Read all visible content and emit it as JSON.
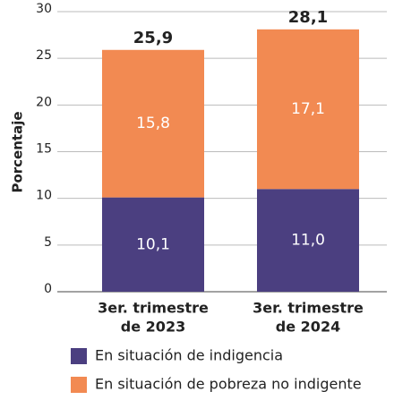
{
  "chart_data": {
    "type": "stacked_bar",
    "categories": [
      [
        "3er. trimestre",
        "de 2023"
      ],
      [
        "3er. trimestre",
        "de 2024"
      ]
    ],
    "y_label": "Porcentaje",
    "series": [
      {
        "name": "En situación de indigencia",
        "color": "#4b3f80",
        "values": [
          10.1,
          11.0
        ],
        "value_labels": [
          "10,1",
          "11,0"
        ]
      },
      {
        "name": "En situación de pobreza no indigente",
        "color": "#f28a52",
        "values": [
          15.8,
          17.1
        ],
        "value_labels": [
          "15,8",
          "17,1"
        ]
      }
    ],
    "totals": [
      25.9,
      28.1
    ],
    "total_labels": [
      "25,9",
      "28,1"
    ],
    "ylim": [
      0,
      30
    ],
    "yticks": [
      0,
      5,
      10,
      15,
      20,
      25,
      30
    ],
    "grid": true
  }
}
